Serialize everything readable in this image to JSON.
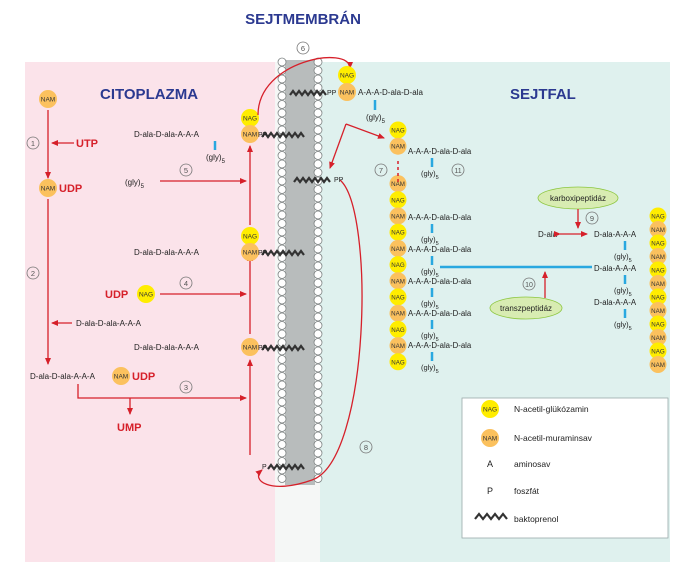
{
  "titles": {
    "membrane": "SEJTMEMBRÁN",
    "cytoplasm": "CITOPLAZMA",
    "cell_wall": "SEJTFAL"
  },
  "colors": {
    "cytoplasm_bg": "#fbe3ea",
    "cell_wall_bg": "#dff1ee",
    "title_blue": "#2b3990",
    "arrow_red": "#d6202a",
    "crosslink_blue": "#29a8e0",
    "nag_fill": "#ffed00",
    "nam_fill": "#fbc15e",
    "enzyme_fill": "#d8ecb2"
  },
  "molecules": {
    "nag": "NAG",
    "nam": "NAM",
    "pp": "PP",
    "p": "P",
    "udp": "UDP",
    "utp": "UTP",
    "ump": "UMP"
  },
  "peptides": {
    "dala_chain": "D-ala-D-ala-A-A-A",
    "wall_chain": "A-A-A-D-ala-D-ala",
    "right_chain": "D-ala-A-A-A",
    "dala": "D-ala",
    "gly": "(gly)",
    "gly_sub": "5",
    "udp_chain": "D-ala-D-ala-A-A-A"
  },
  "steps": [
    "1",
    "2",
    "3",
    "4",
    "5",
    "6",
    "7",
    "8",
    "9",
    "10",
    "11"
  ],
  "enzymes": {
    "carboxypeptidase": "karboxipeptidáz",
    "transpeptidase": "transzpeptidáz"
  },
  "legend": [
    {
      "symbol": "NAG",
      "label": "N-acetil-glükózamin"
    },
    {
      "symbol": "NAM",
      "label": "N-acetil-muraminsav"
    },
    {
      "symbol": "A",
      "label": "aminosav"
    },
    {
      "symbol": "P",
      "label": "foszfát"
    },
    {
      "symbol": "bactoprenol",
      "label": "baktoprenol"
    }
  ]
}
